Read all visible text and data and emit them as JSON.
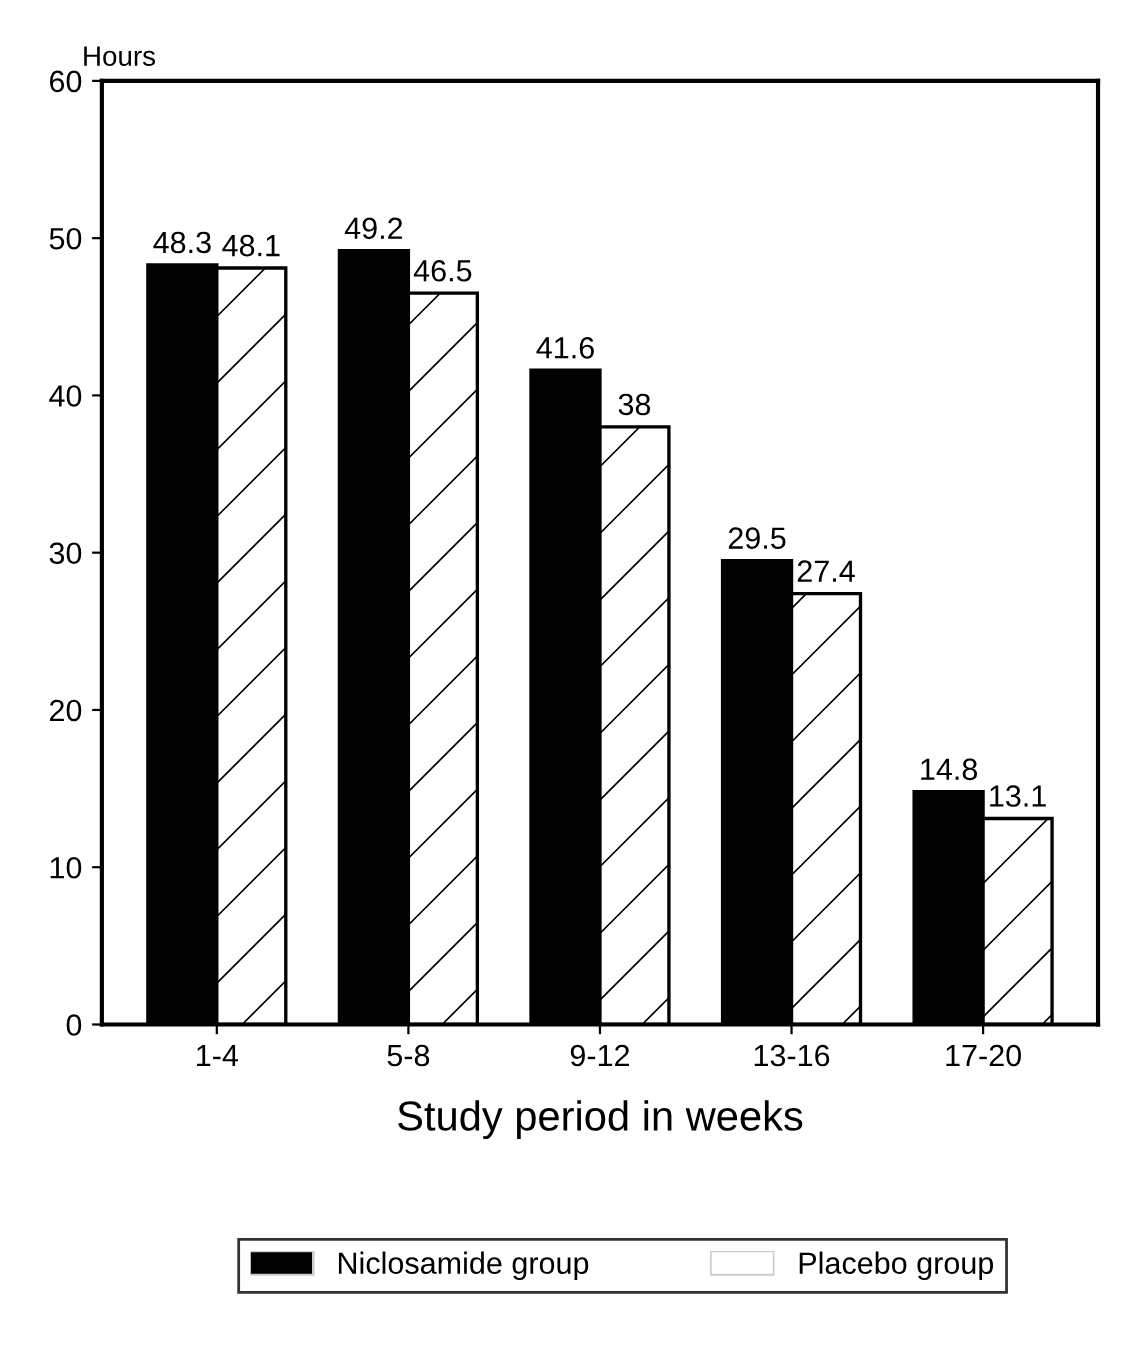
{
  "chart_data": {
    "type": "bar",
    "ylabel": "Hours",
    "xlabel": "Study period in weeks",
    "categories": [
      "1-4",
      "5-8",
      "9-12",
      "13-16",
      "17-20"
    ],
    "series": [
      {
        "name": "Niclosamide group",
        "color": "#000000",
        "values": [
          48.3,
          49.2,
          41.6,
          29.5,
          14.8
        ]
      },
      {
        "name": "Placebo group",
        "color": "#ffffff",
        "values": [
          48.1,
          46.5,
          38,
          27.4,
          13.1
        ]
      }
    ],
    "ylim": [
      0,
      60
    ],
    "yticks": [
      0,
      10,
      20,
      30,
      40,
      50,
      60
    ],
    "data_labels": true,
    "grid": false,
    "legend": "bottom"
  }
}
